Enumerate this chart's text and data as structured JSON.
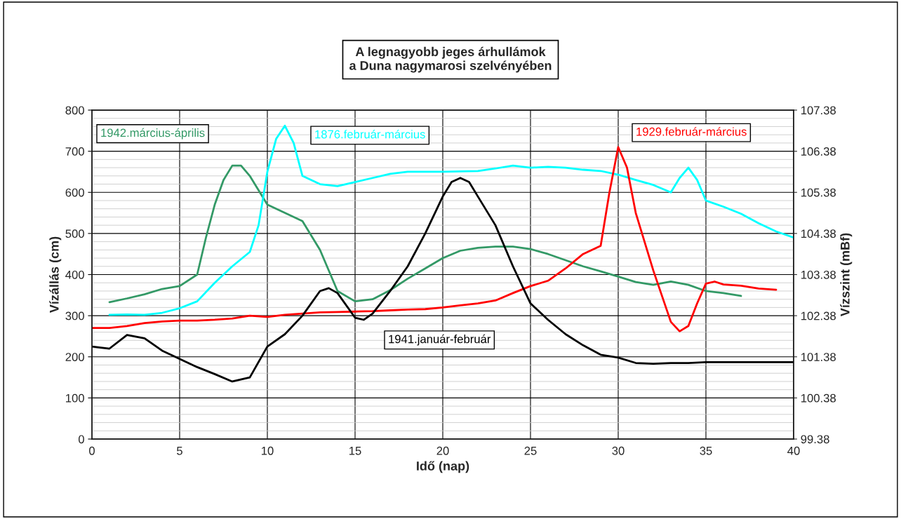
{
  "chart_data": {
    "type": "line",
    "title": "A legnagyobb jeges árhullámok\na Duna nagymarosi szelvényében",
    "xlabel": "Idő (nap)",
    "ylabel": "Vízállás (cm)",
    "y2label": "Vízszint (mBf)",
    "xlim": [
      0,
      40
    ],
    "xticks": [
      0,
      5,
      10,
      15,
      20,
      25,
      30,
      35,
      40
    ],
    "ylim": [
      0,
      800
    ],
    "yticks": [
      0,
      100,
      200,
      300,
      400,
      500,
      600,
      700,
      800
    ],
    "y2lim": [
      99.38,
      107.38
    ],
    "y2ticks": [
      99.38,
      100.38,
      101.38,
      102.38,
      103.38,
      104.38,
      105.38,
      106.38,
      107.38
    ],
    "grid": true,
    "legend": false,
    "series": [
      {
        "name": "1942.március-április",
        "color": "#339966",
        "x": [
          1,
          2,
          3,
          4,
          5,
          6,
          6.5,
          7,
          7.5,
          8,
          8.5,
          9,
          10,
          11,
          12,
          13,
          14,
          15,
          16,
          17,
          18,
          19,
          20,
          21,
          22,
          23,
          24,
          25,
          26,
          27,
          28,
          29,
          30,
          31,
          32,
          33,
          34,
          35,
          36,
          37
        ],
        "values": [
          333,
          342,
          352,
          365,
          372,
          400,
          490,
          570,
          630,
          665,
          665,
          640,
          570,
          550,
          530,
          460,
          360,
          335,
          340,
          362,
          390,
          415,
          440,
          458,
          465,
          468,
          468,
          462,
          450,
          435,
          420,
          408,
          395,
          382,
          375,
          383,
          375,
          360,
          355,
          348
        ]
      },
      {
        "name": "1876.február-március",
        "color": "#00ffff",
        "x": [
          1,
          2,
          3,
          4,
          5,
          6,
          7,
          8,
          9,
          9.5,
          10,
          10.5,
          11,
          11.5,
          12,
          13,
          14,
          15,
          16,
          17,
          18,
          20,
          22,
          23,
          24,
          25,
          26,
          27,
          28,
          29,
          30,
          31,
          32,
          33,
          33.5,
          34,
          34.5,
          35,
          36,
          37,
          38,
          39,
          40
        ],
        "values": [
          302,
          303,
          302,
          307,
          318,
          335,
          380,
          420,
          455,
          520,
          650,
          730,
          762,
          720,
          640,
          620,
          615,
          625,
          635,
          645,
          650,
          650,
          652,
          658,
          665,
          660,
          662,
          660,
          655,
          652,
          643,
          630,
          618,
          600,
          635,
          660,
          630,
          580,
          565,
          548,
          525,
          505,
          490
        ]
      },
      {
        "name": "1929.február-március",
        "color": "#ff0000",
        "x": [
          0,
          1,
          2,
          3,
          4,
          5,
          6,
          7,
          8,
          9,
          10,
          11,
          12,
          13,
          14,
          15,
          16,
          17,
          18,
          19,
          20,
          21,
          22,
          23,
          24,
          25,
          26,
          27,
          28,
          29,
          29.5,
          30,
          30.5,
          31,
          32,
          33,
          33.5,
          34,
          34.5,
          35,
          35.5,
          36,
          37,
          38,
          39
        ],
        "values": [
          270,
          270,
          275,
          282,
          286,
          288,
          288,
          290,
          293,
          300,
          297,
          302,
          305,
          308,
          309,
          310,
          311,
          313,
          315,
          316,
          320,
          325,
          330,
          337,
          355,
          372,
          385,
          415,
          450,
          470,
          600,
          710,
          660,
          550,
          410,
          285,
          262,
          275,
          330,
          378,
          383,
          376,
          373,
          366,
          363
        ]
      },
      {
        "name": "1941.január-február",
        "color": "#000000",
        "x": [
          0,
          1,
          2,
          3,
          4,
          5,
          6,
          7,
          8,
          9,
          10,
          11,
          12,
          13,
          13.5,
          14,
          15,
          15.5,
          16,
          17,
          18,
          19,
          20,
          20.5,
          21,
          21.5,
          22,
          23,
          24,
          25,
          26,
          27,
          28,
          29,
          30,
          31,
          32,
          33,
          34,
          35,
          36,
          40
        ],
        "values": [
          225,
          220,
          253,
          245,
          215,
          195,
          175,
          158,
          140,
          150,
          225,
          255,
          300,
          360,
          367,
          355,
          295,
          290,
          305,
          360,
          420,
          500,
          590,
          625,
          635,
          625,
          590,
          520,
          420,
          330,
          290,
          255,
          228,
          205,
          198,
          185,
          183,
          185,
          185,
          187,
          187,
          187
        ]
      }
    ]
  }
}
